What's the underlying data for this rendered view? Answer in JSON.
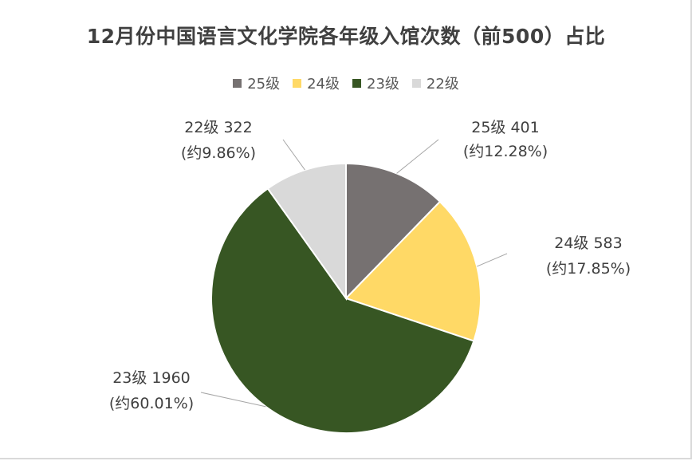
{
  "chart_data": {
    "type": "pie",
    "title": "12月份中国语言文化学院各年级入馆次数（前500）占比",
    "legend_position": "top",
    "categories": [
      "25级",
      "24级",
      "23级",
      "22级"
    ],
    "values": [
      401,
      583,
      1960,
      322
    ],
    "percent_labels": [
      "(约12.28%)",
      "(约17.85%)",
      "(约60.01%)",
      "(约9.86%)"
    ],
    "value_labels": [
      "25级  401",
      "24级  583",
      "23级  1960",
      "22级  322"
    ],
    "colors": [
      "#767171",
      "#ffd966",
      "#375623",
      "#d9d9d9"
    ]
  }
}
